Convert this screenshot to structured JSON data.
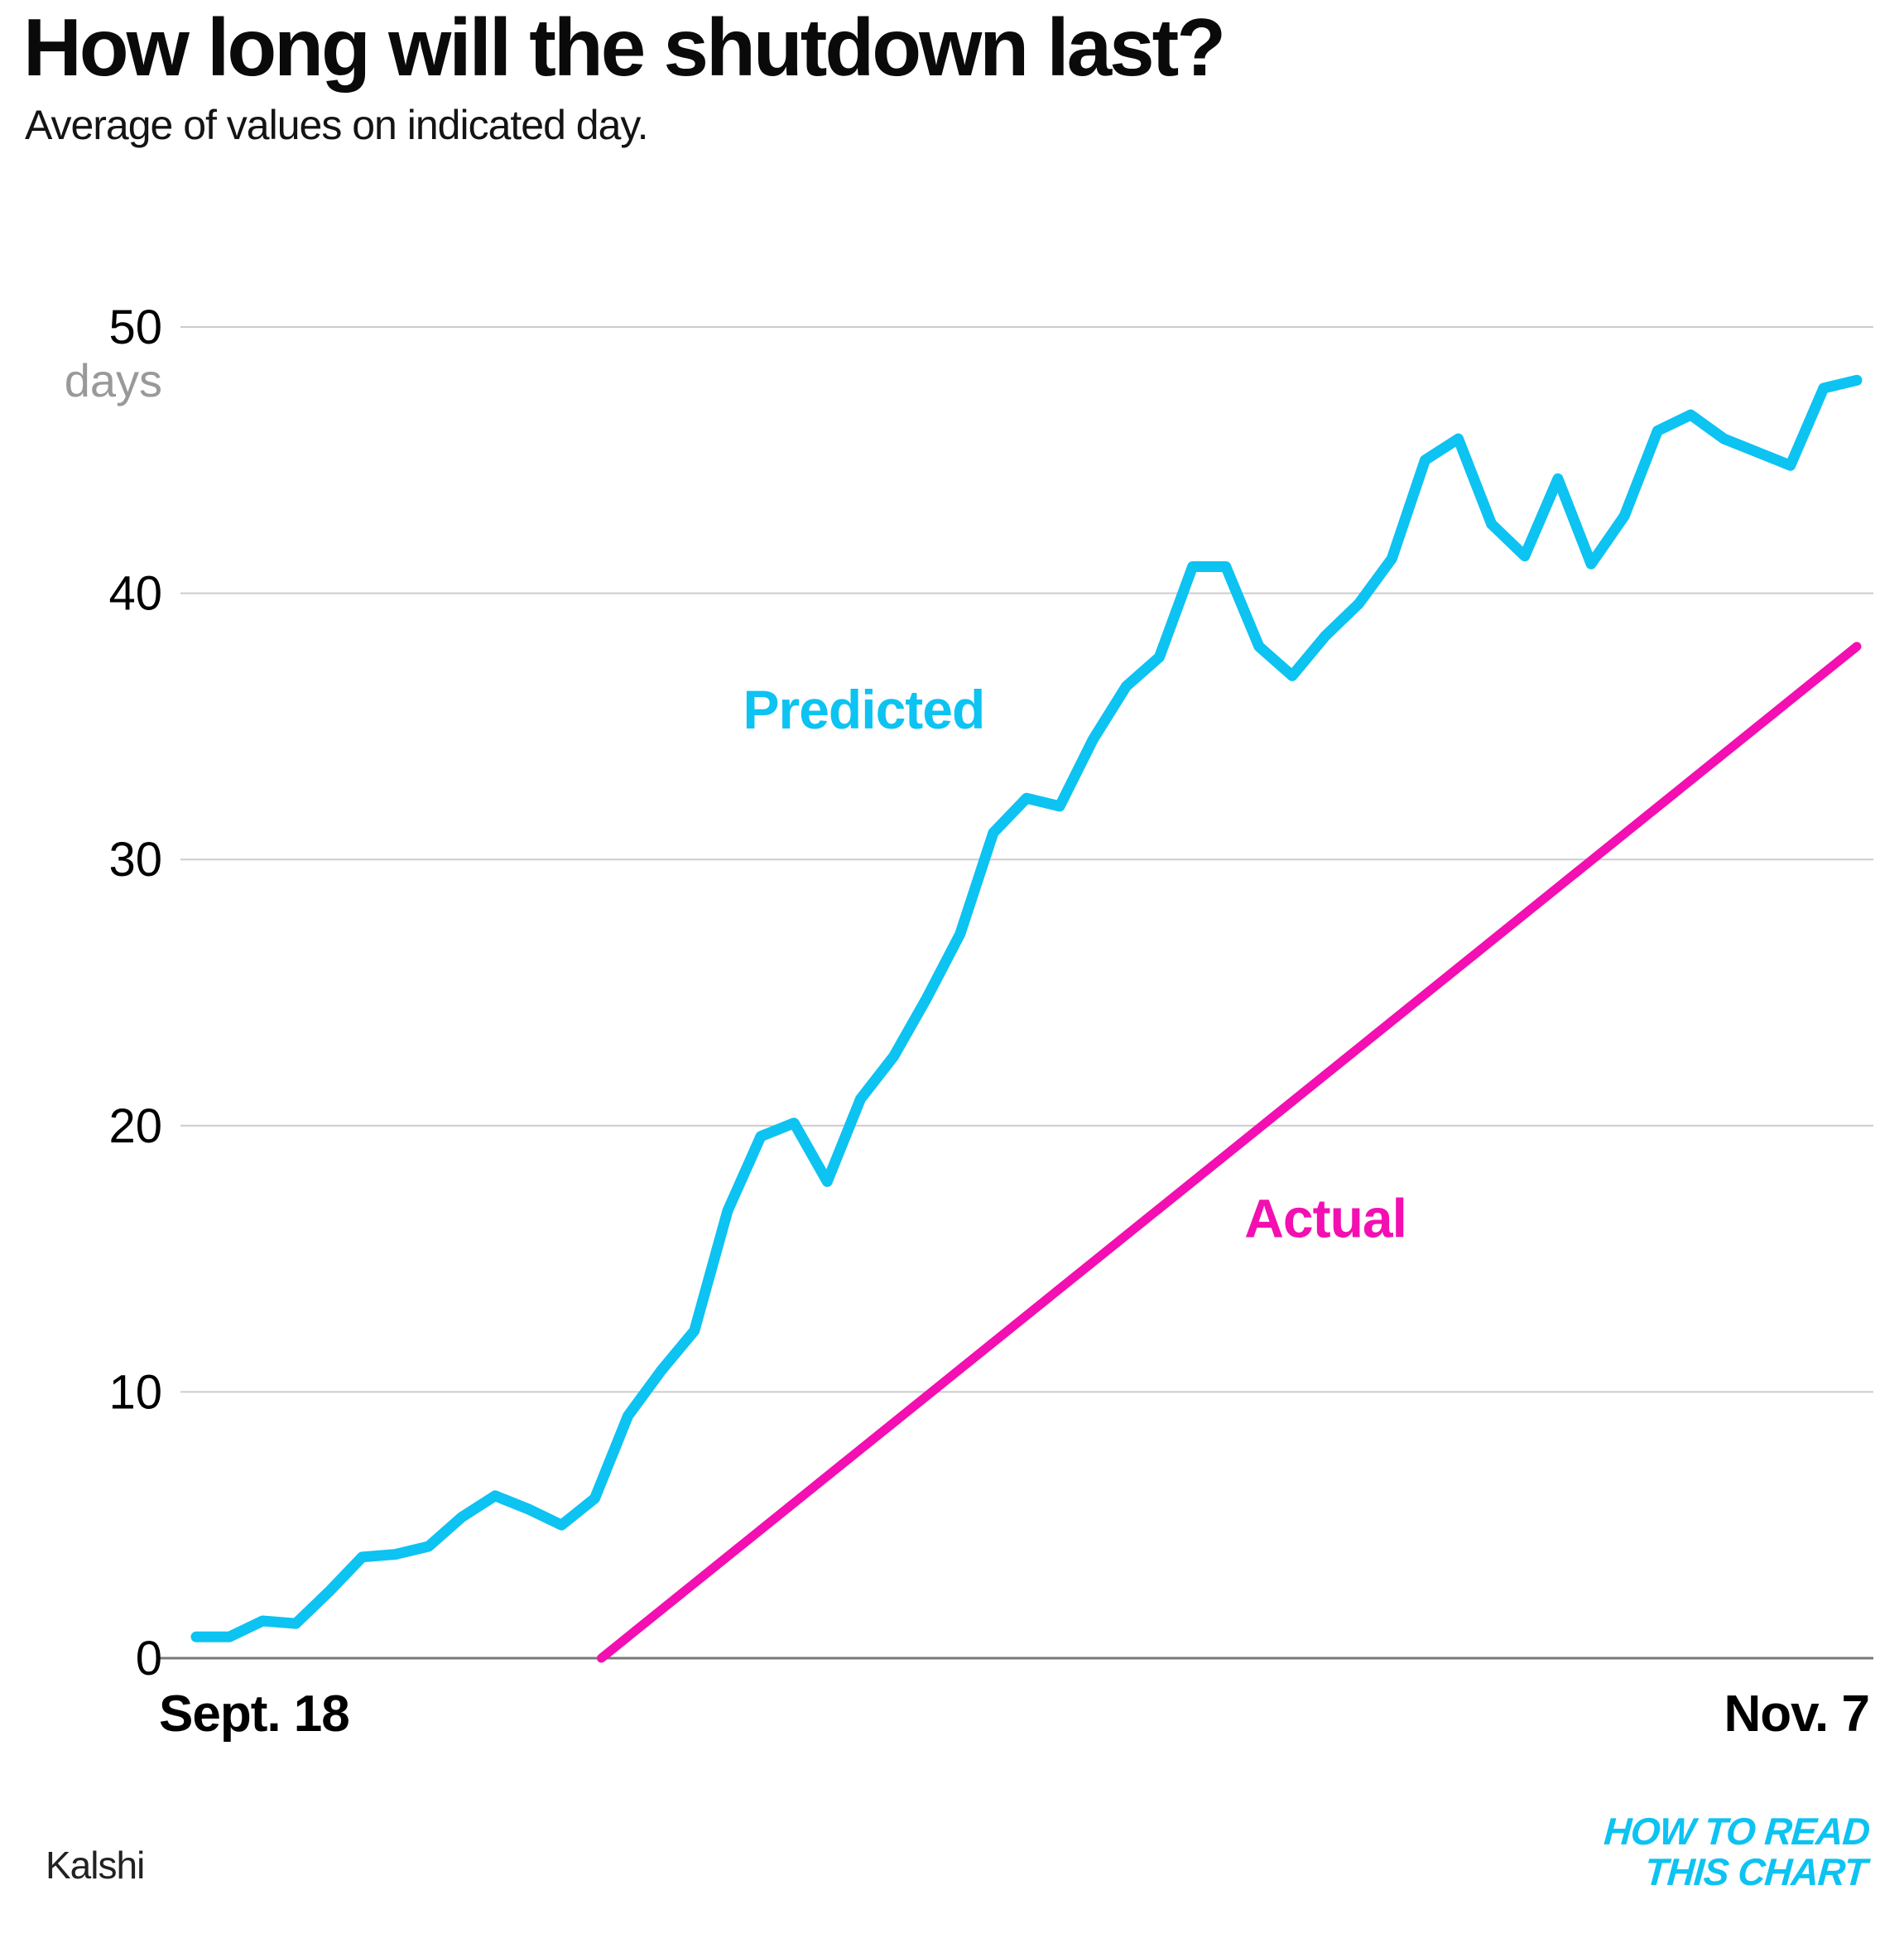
{
  "header": {
    "title": "How long will the shutdown last?",
    "subtitle": "Average of values on indicated day."
  },
  "footer": {
    "source": "Kalshi",
    "logo_line1": "HOW TO READ",
    "logo_line2": "THIS CHART"
  },
  "colors": {
    "predicted": "#0cc3f2",
    "actual": "#f30fb1",
    "gridline": "#cccccc",
    "baseline": "#787878",
    "tick_label": "#000000",
    "unit_label": "#999999",
    "logo": "#0cc3f2"
  },
  "chart_data": {
    "type": "line",
    "title": "How long will the shutdown last?",
    "subtitle": "Average of values on indicated day.",
    "x_axis": {
      "domain_days": [
        0,
        50
      ],
      "start_label": "Sept. 18",
      "end_label": "Nov. 7",
      "grid": false
    },
    "y_axis": {
      "ticks": [
        0,
        10,
        20,
        30,
        40,
        50
      ],
      "unit_label": "days",
      "range": [
        0,
        50
      ],
      "grid": true
    },
    "legend_position": "inline-labels",
    "series": [
      {
        "name": "Predicted",
        "color_key": "predicted",
        "label": {
          "text": "Predicted",
          "x": 20.1,
          "y": 35.6
        },
        "x_start_day": 0,
        "values": [
          0.8,
          0.8,
          1.4,
          1.3,
          2.5,
          3.8,
          3.9,
          4.2,
          5.3,
          6.1,
          5.6,
          5.0,
          6.0,
          9.1,
          10.8,
          12.3,
          16.8,
          19.6,
          20.1,
          17.9,
          21.0,
          22.6,
          24.8,
          27.2,
          31.0,
          32.3,
          32.0,
          34.5,
          36.5,
          37.6,
          41.0,
          41.0,
          38.0,
          36.9,
          38.4,
          39.6,
          41.3,
          45.0,
          45.8,
          42.6,
          41.4,
          44.3,
          41.1,
          42.9,
          46.1,
          46.7,
          45.8,
          45.3,
          44.8,
          47.7,
          48.0
        ]
      },
      {
        "name": "Actual",
        "color_key": "actual",
        "label": {
          "text": "Actual",
          "x": 34.0,
          "y": 16.5
        },
        "points": [
          [
            12.2,
            0
          ],
          [
            50,
            38
          ]
        ]
      }
    ]
  }
}
